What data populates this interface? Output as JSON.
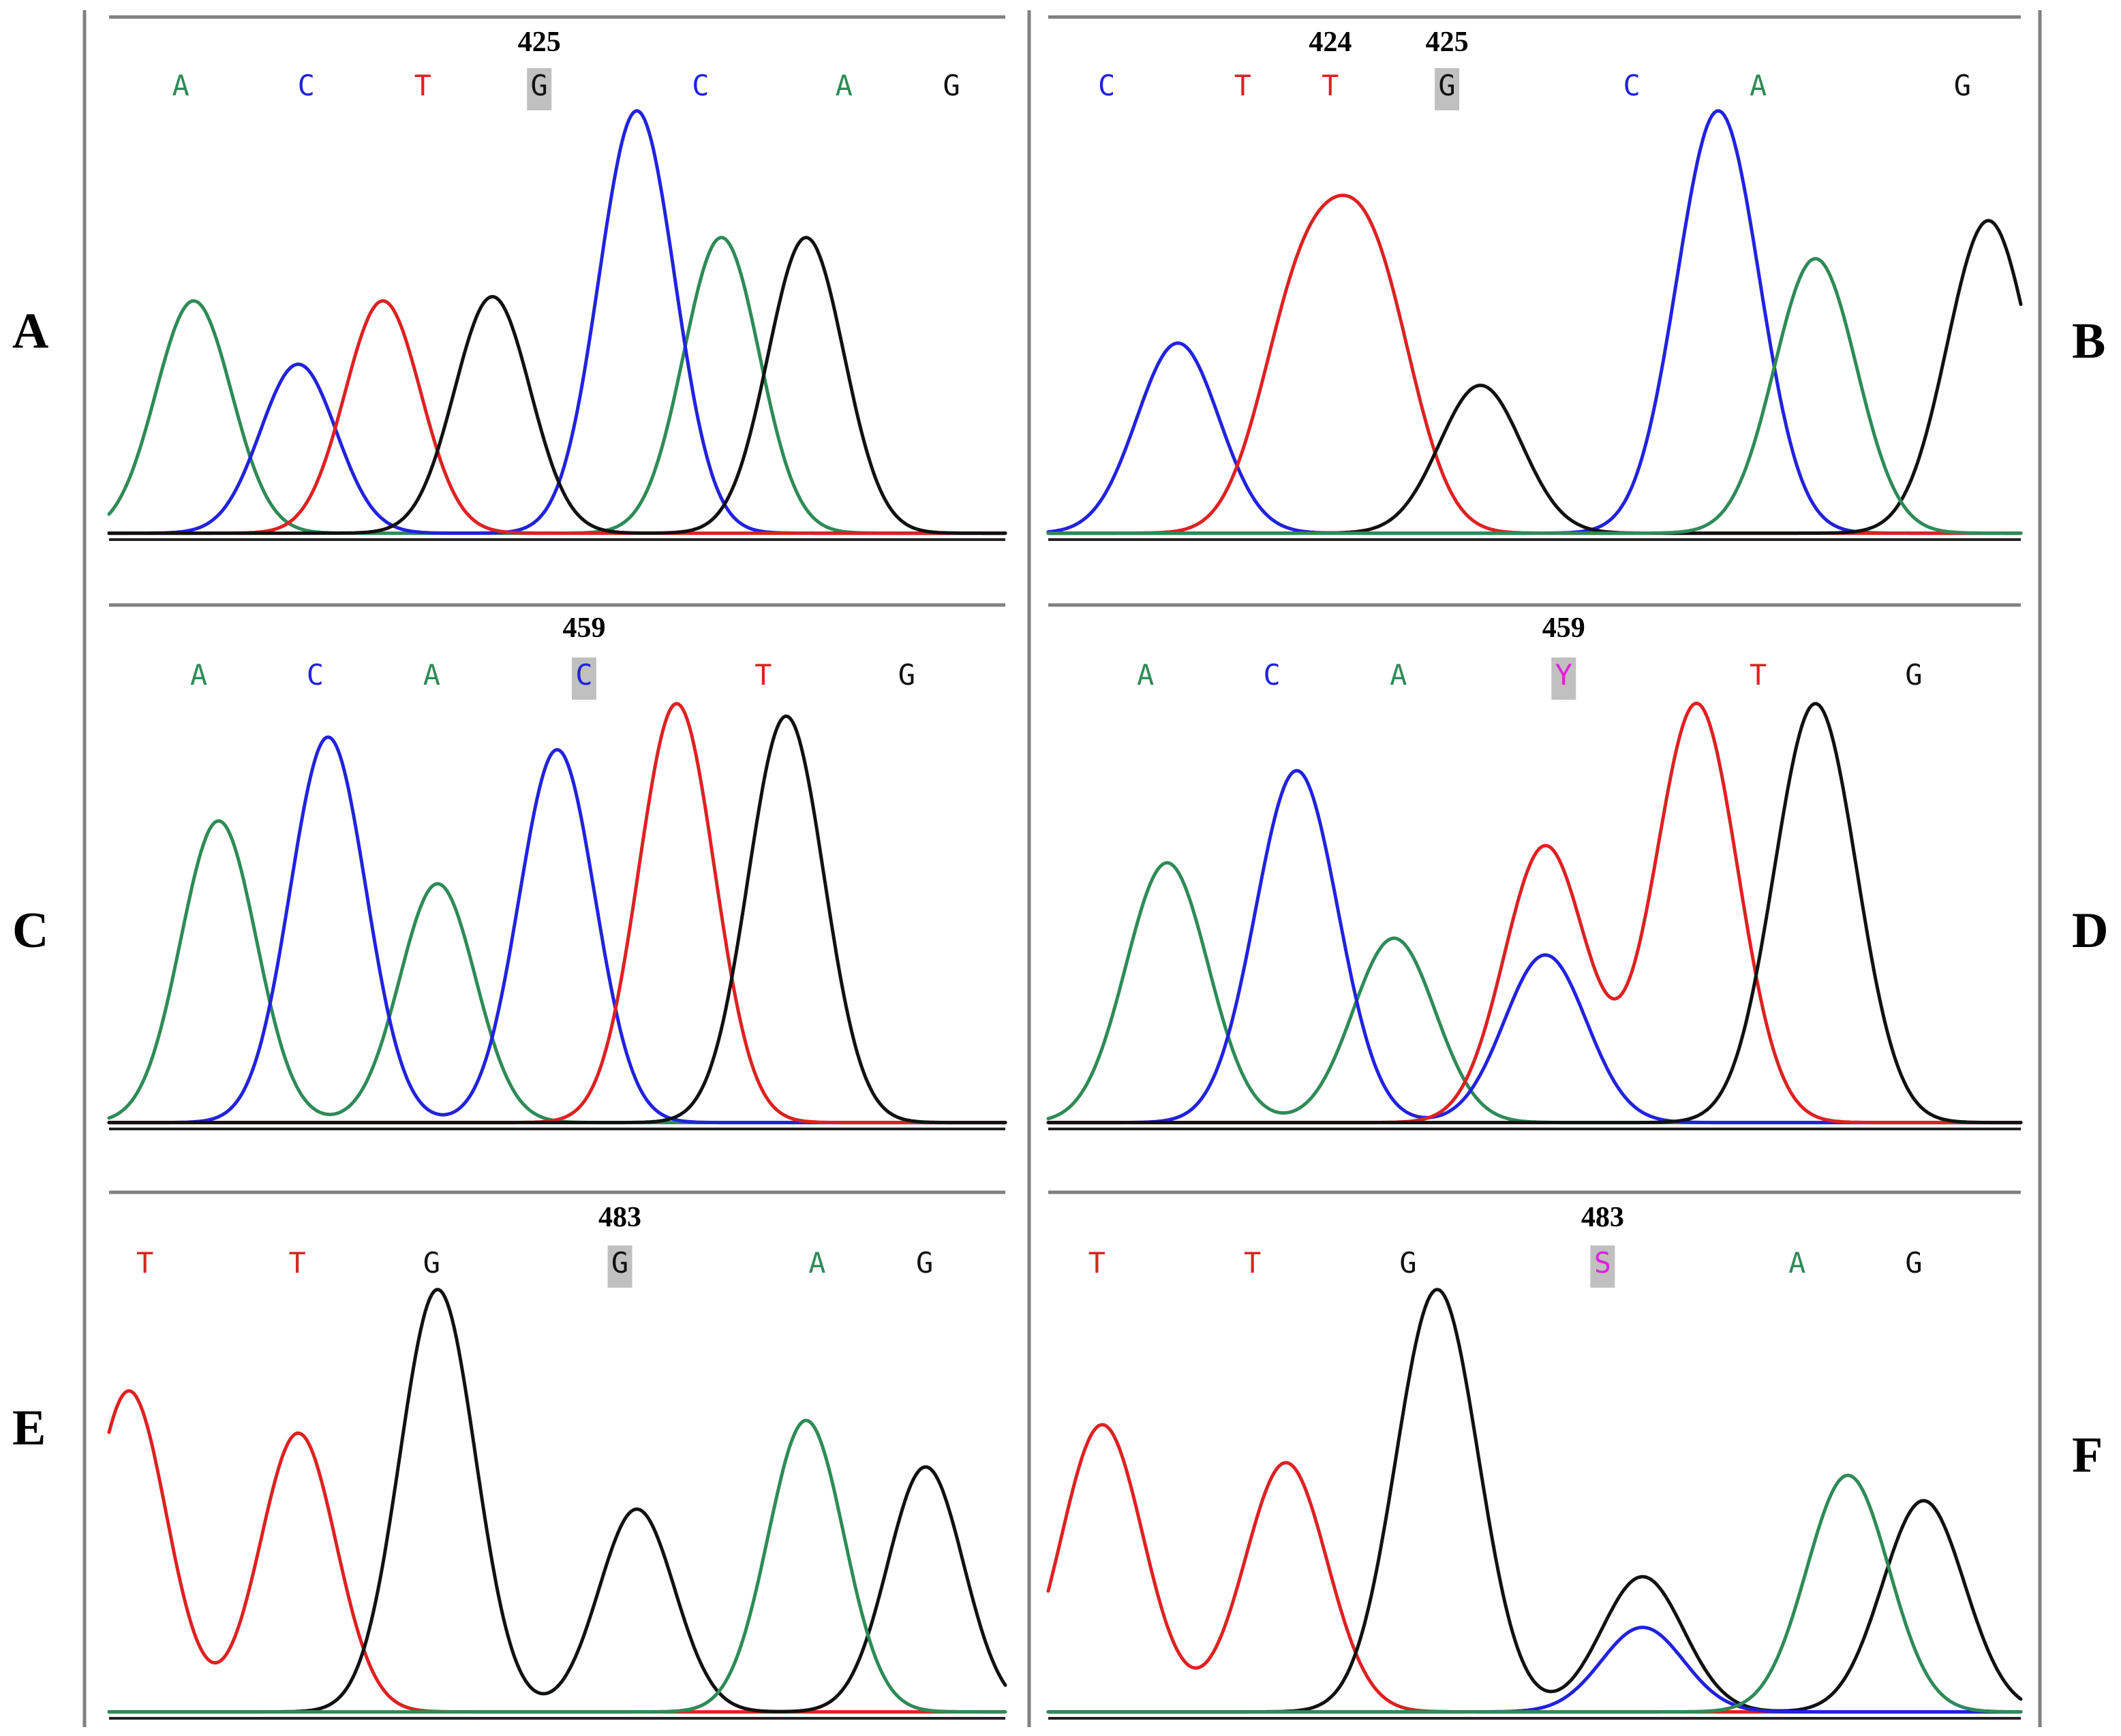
{
  "colors": {
    "A": "#2e8b57",
    "C": "#2222dd",
    "T": "#dd2222",
    "G": "#111111",
    "Y": "#dd22dd",
    "S": "#dd22dd",
    "frame": "#808080",
    "highlight": "#c0c0c0"
  },
  "chart_data": [
    {
      "type": "line",
      "panel": "A",
      "positions": [
        "425"
      ],
      "bases": [
        "A",
        "C",
        "T",
        "G",
        "C",
        "A",
        "G"
      ],
      "highlight_index": 3,
      "traces": {
        "A": [
          [
            0.85,
            0.55
          ],
          [
            6.15,
            0.7
          ]
        ],
        "C": [
          [
            1.9,
            0.4
          ],
          [
            5.3,
            1.0
          ]
        ],
        "T": [
          [
            2.75,
            0.55
          ]
        ],
        "G": [
          [
            3.85,
            0.56
          ],
          [
            7.0,
            0.7
          ]
        ]
      }
    },
    {
      "type": "line",
      "panel": "B",
      "positions": [
        "424",
        "425"
      ],
      "bases": [
        "C",
        "T",
        "T",
        "G",
        "C",
        "A",
        "G"
      ],
      "highlight_index": 3,
      "traces": {
        "C": [
          [
            1.2,
            0.45
          ],
          [
            6.2,
            1.0
          ]
        ],
        "T": [
          [
            2.35,
            0.55
          ],
          [
            3.0,
            0.6
          ]
        ],
        "G": [
          [
            4.0,
            0.35
          ],
          [
            8.7,
            0.74
          ]
        ],
        "A": [
          [
            7.1,
            0.65
          ]
        ]
      }
    },
    {
      "type": "line",
      "panel": "C",
      "positions": [
        "459"
      ],
      "bases": [
        "A",
        "C",
        "A",
        "C",
        "T",
        "G"
      ],
      "highlight_index": 3,
      "traces": {
        "A": [
          [
            1.1,
            0.72
          ],
          [
            3.3,
            0.57
          ]
        ],
        "C": [
          [
            2.2,
            0.92
          ],
          [
            4.5,
            0.89
          ]
        ],
        "T": [
          [
            5.7,
            1.0
          ]
        ],
        "G": [
          [
            6.8,
            0.97
          ]
        ]
      }
    },
    {
      "type": "line",
      "panel": "D",
      "positions": [
        "459"
      ],
      "bases": [
        "A",
        "C",
        "A",
        "Y",
        "T",
        "G"
      ],
      "highlight_index": 3,
      "traces": {
        "A": [
          [
            1.1,
            0.62
          ],
          [
            3.2,
            0.44
          ]
        ],
        "C": [
          [
            2.3,
            0.84
          ],
          [
            4.6,
            0.4
          ]
        ],
        "T": [
          [
            4.6,
            0.66
          ],
          [
            6.0,
            1.0
          ]
        ],
        "G": [
          [
            7.1,
            1.0
          ]
        ]
      }
    },
    {
      "type": "line",
      "panel": "E",
      "positions": [
        "483"
      ],
      "bases": [
        "T",
        "T",
        "G",
        "G",
        "A",
        "G"
      ],
      "highlight_index": 3,
      "traces": {
        "T": [
          [
            0.2,
            0.76
          ],
          [
            1.9,
            0.66
          ]
        ],
        "G": [
          [
            3.3,
            1.0
          ],
          [
            5.3,
            0.48
          ],
          [
            8.2,
            0.58
          ]
        ],
        "A": [
          [
            7.0,
            0.69
          ]
        ]
      }
    },
    {
      "type": "line",
      "panel": "F",
      "positions": [
        "483"
      ],
      "bases": [
        "T",
        "T",
        "G",
        "S",
        "A",
        "G"
      ],
      "highlight_index": 3,
      "traces": {
        "T": [
          [
            0.5,
            0.68
          ],
          [
            2.2,
            0.59
          ]
        ],
        "G": [
          [
            3.6,
            1.0
          ],
          [
            5.5,
            0.32
          ],
          [
            8.1,
            0.5
          ]
        ],
        "C": [
          [
            5.5,
            0.2
          ]
        ],
        "A": [
          [
            7.4,
            0.56
          ]
        ]
      }
    }
  ]
}
